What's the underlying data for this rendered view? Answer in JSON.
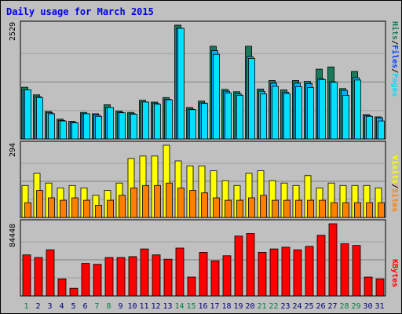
{
  "chart_data": {
    "type": "bar",
    "title": "Daily usage for March 2015",
    "colors": {
      "hits": "#1a7a5a",
      "files": "#00b0ff",
      "pages": "#00e0ff",
      "visits": "#ffff00",
      "sites": "#ff8000",
      "kbytes": "#ff0000",
      "weekday_label": "#000080",
      "weekend_label": "#008040",
      "panel_bg": "#c0c0c0",
      "frame_bg": "#c0c0c0"
    },
    "days": [
      "1",
      "2",
      "3",
      "4",
      "5",
      "6",
      "7",
      "8",
      "9",
      "10",
      "11",
      "12",
      "13",
      "14",
      "15",
      "16",
      "17",
      "18",
      "19",
      "20",
      "21",
      "22",
      "23",
      "24",
      "25",
      "26",
      "27",
      "28",
      "29",
      "30",
      "31"
    ],
    "weekend_days": [
      "1",
      "7",
      "8",
      "14",
      "15",
      "21",
      "22",
      "28",
      "29"
    ],
    "panels": [
      {
        "max_label": "2529",
        "ymax": 2529,
        "legend": [
          {
            "text": "Hits",
            "color": "#1a7a5a"
          },
          {
            "text": "/",
            "color": "#000000"
          },
          {
            "text": "Files",
            "color": "#0040ff"
          },
          {
            "text": "/",
            "color": "#000000"
          },
          {
            "text": "Pages",
            "color": "#00e0ff"
          }
        ],
        "series": [
          {
            "name": "Hits",
            "values": [
              1150,
              980,
              610,
              440,
              390,
              590,
              560,
              760,
              620,
              590,
              860,
              820,
              920,
              2529,
              700,
              840,
              2060,
              1100,
              1050,
              2060,
              1110,
              1300,
              1090,
              1300,
              1280,
              1550,
              1600,
              1120,
              1500,
              540,
              490
            ]
          },
          {
            "name": "Files",
            "values": [
              1090,
              940,
              580,
              410,
              370,
              560,
              530,
              700,
              590,
              560,
              820,
              790,
              880,
              2460,
              660,
              800,
              1960,
              1060,
              1000,
              1830,
              1060,
              1240,
              1040,
              1240,
              1230,
              1340,
              1270,
              1080,
              1360,
              520,
              470
            ]
          },
          {
            "name": "Pages",
            "values": [
              1090,
              920,
              560,
              400,
              360,
              560,
              500,
              700,
              580,
              550,
              820,
              770,
              870,
              2460,
              650,
              790,
              1880,
              1020,
              970,
              1790,
              1000,
              1170,
              1010,
              1160,
              1140,
              1320,
              1260,
              970,
              1310,
              500,
              400
            ]
          }
        ]
      },
      {
        "max_label": "294",
        "ymax": 294,
        "legend": [
          {
            "text": "Visits",
            "color": "#ffff00"
          },
          {
            "text": "/",
            "color": "#000000"
          },
          {
            "text": "Sites",
            "color": "#ff8000"
          }
        ],
        "series": [
          {
            "name": "Visits",
            "values": [
              130,
              180,
              140,
              120,
              130,
              120,
              90,
              110,
              140,
              240,
              250,
              250,
              294,
              230,
              210,
              210,
              190,
              150,
              130,
              180,
              190,
              150,
              140,
              130,
              170,
              120,
              140,
              130,
              130,
              130,
              120
            ]
          },
          {
            "name": "Sites",
            "values": [
              60,
              110,
              80,
              70,
              80,
              70,
              50,
              70,
              90,
              120,
              130,
              130,
              140,
              120,
              110,
              100,
              80,
              70,
              70,
              80,
              90,
              70,
              70,
              70,
              70,
              70,
              60,
              60,
              60,
              60,
              60
            ]
          }
        ]
      },
      {
        "max_label": "84448",
        "ymax": 84448,
        "legend": [
          {
            "text": "KBytes",
            "color": "#ff0000"
          }
        ],
        "series": [
          {
            "name": "KBytes",
            "values": [
              48000,
              45000,
              54000,
              20000,
              9000,
              38000,
              37000,
              45000,
              45000,
              46000,
              55000,
              48000,
              43000,
              56000,
              22000,
              51000,
              41000,
              47000,
              70000,
              73000,
              51000,
              55000,
              57000,
              54000,
              58000,
              71000,
              84448,
              61000,
              59000,
              22000,
              20000
            ]
          }
        ]
      }
    ]
  }
}
